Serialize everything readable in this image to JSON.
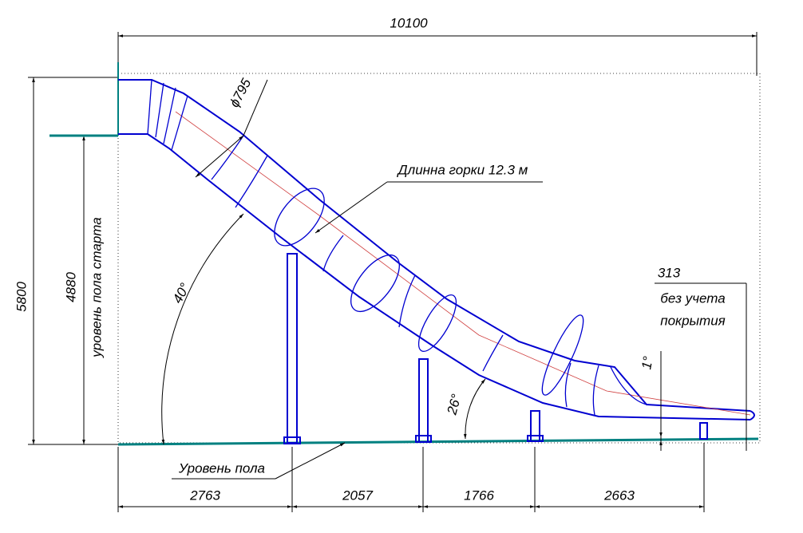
{
  "overall_width": "10100",
  "diameter": "ϕ795",
  "slide_length": "Длинна горки 12.3 м",
  "exit_height": {
    "value": "313",
    "note": [
      "без учета",
      "покрытия"
    ]
  },
  "exit_angle": "1°",
  "total_height": "5800",
  "start_height": "4880",
  "start_level": "уровень пола старта",
  "angle_upper": "40°",
  "angle_lower": "26°",
  "floor_level": "Уровень пола",
  "spans": [
    "2763",
    "2057",
    "1766",
    "2663"
  ]
}
